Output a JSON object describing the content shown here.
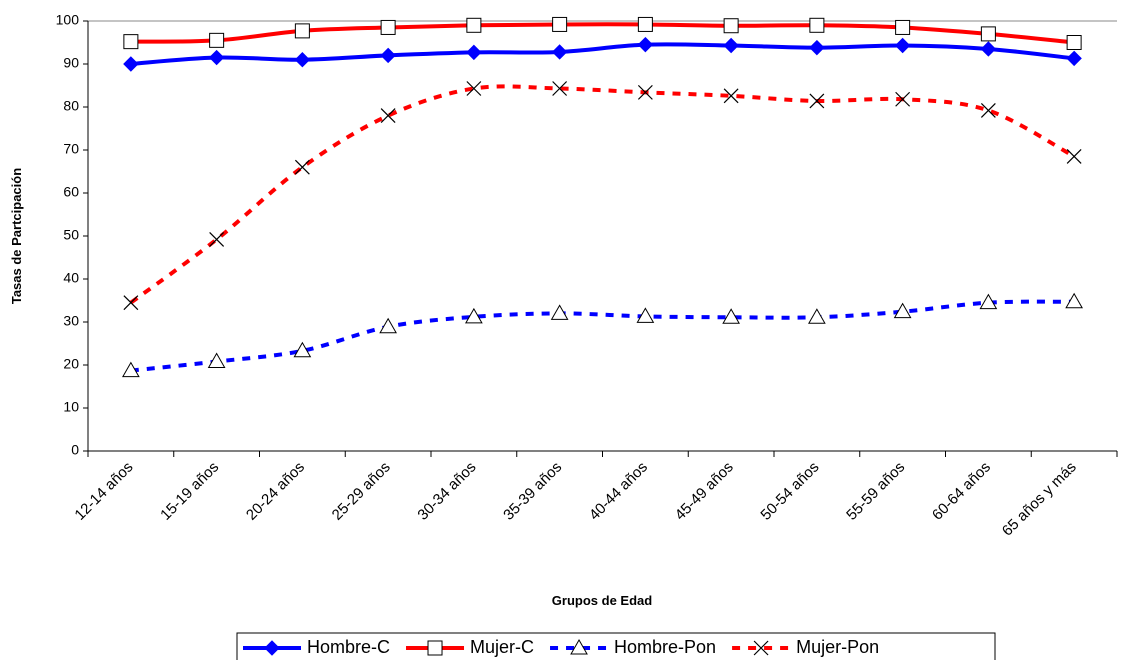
{
  "chart_data": {
    "type": "line",
    "x_label": "Grupos de Edad",
    "y_label": "Tasas de Partcipación",
    "categories": [
      "12-14 años",
      "15-19 años",
      "20-24 años",
      "25-29 años",
      "30-34 años",
      "35-39 años",
      "40-44 años",
      "45-49 años",
      "50-54 años",
      "55-59 años",
      "60-64 años",
      "65 años y más"
    ],
    "series": [
      {
        "name": "Hombre-C",
        "color": "#0000ff",
        "marker": "diamond",
        "dashed": false,
        "values": [
          90,
          91.5,
          91,
          92,
          92.7,
          92.8,
          94.5,
          94.3,
          93.8,
          94.3,
          93.5,
          91.3
        ]
      },
      {
        "name": "Mujer-C",
        "color": "#ff0000",
        "marker": "square",
        "dashed": false,
        "values": [
          95.2,
          95.5,
          97.7,
          98.5,
          99,
          99.2,
          99.2,
          98.9,
          99,
          98.5,
          97,
          95
        ]
      },
      {
        "name": "Hombre-Pon",
        "color": "#0000ff",
        "marker": "triangle",
        "dashed": true,
        "values": [
          18.7,
          20.8,
          23.3,
          28.9,
          31.2,
          32,
          31.3,
          31.1,
          31.1,
          32.4,
          34.5,
          34.7
        ]
      },
      {
        "name": "Mujer-Pon",
        "color": "#ff0000",
        "marker": "cross",
        "dashed": true,
        "values": [
          34.5,
          49.2,
          66,
          78,
          84.3,
          84.3,
          83.4,
          82.6,
          81.4,
          81.8,
          79.2,
          68.5
        ]
      }
    ],
    "ylim": [
      0,
      100
    ],
    "yticks": [
      0,
      10,
      20,
      30,
      40,
      50,
      60,
      70,
      80,
      90,
      100
    ],
    "legend": "bottom"
  }
}
